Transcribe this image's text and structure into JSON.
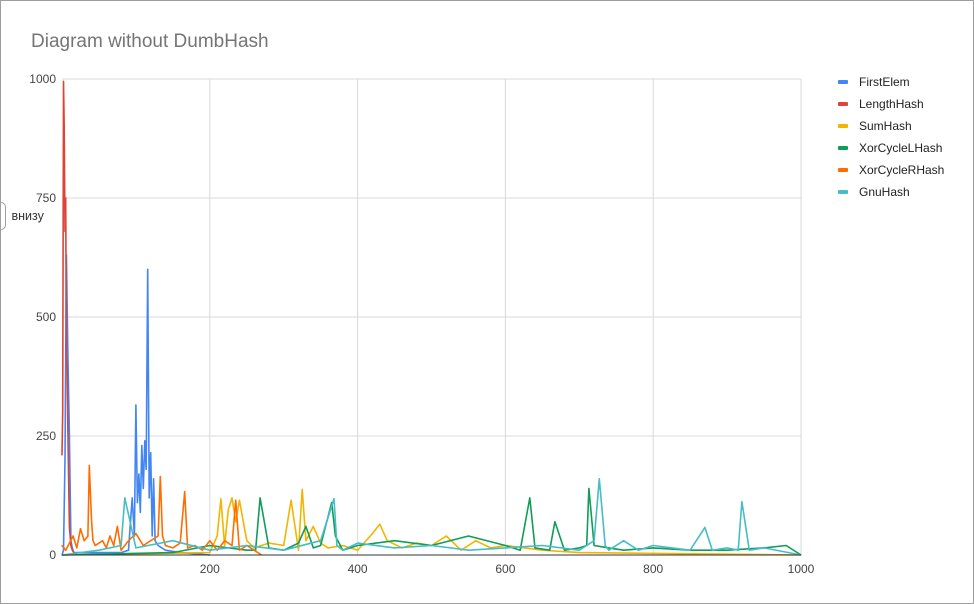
{
  "chart_data": {
    "type": "line",
    "title": "Diagram without DumbHash",
    "xlabel": "",
    "ylabel": "",
    "xlim": [
      0,
      1000
    ],
    "ylim": [
      0,
      1000
    ],
    "x_ticks": [
      "200",
      "400",
      "600",
      "800",
      "1000"
    ],
    "y_ticks": [
      "0",
      "250",
      "500",
      "750",
      "1000"
    ],
    "grid": true,
    "legend_position": "right",
    "series": [
      {
        "name": "FirstElem",
        "color": "#4285f4",
        "x": [
          0,
          2,
          4,
          6,
          8,
          10,
          12,
          14,
          16,
          20,
          30,
          40,
          50,
          60,
          70,
          80,
          90,
          95,
          98,
          100,
          102,
          104,
          106,
          108,
          110,
          112,
          114,
          115,
          116,
          118,
          120,
          122,
          124,
          126,
          130,
          140,
          160,
          200
        ],
        "values": [
          0,
          10,
          200,
          630,
          420,
          250,
          30,
          15,
          5,
          5,
          5,
          5,
          5,
          5,
          5,
          5,
          10,
          120,
          40,
          315,
          110,
          170,
          90,
          230,
          140,
          240,
          180,
          410,
          600,
          120,
          215,
          40,
          160,
          30,
          20,
          10,
          5,
          0
        ]
      },
      {
        "name": "LengthHash",
        "color": "#db4437",
        "x": [
          0,
          1,
          2,
          3,
          4,
          5,
          6,
          7,
          8,
          9,
          10,
          12,
          14,
          16,
          20
        ],
        "values": [
          210,
          300,
          995,
          900,
          680,
          750,
          420,
          380,
          260,
          150,
          60,
          20,
          10,
          5,
          0
        ]
      },
      {
        "name": "SumHash",
        "color": "#f4b400",
        "x": [
          0,
          200,
          210,
          215,
          220,
          225,
          230,
          235,
          240,
          250,
          260,
          280,
          300,
          310,
          320,
          325,
          330,
          340,
          350,
          360,
          380,
          400,
          420,
          430,
          440,
          460,
          480,
          500,
          520,
          540,
          560,
          580,
          600,
          650,
          700,
          1000
        ],
        "values": [
          0,
          5,
          40,
          118,
          20,
          95,
          120,
          70,
          115,
          30,
          15,
          25,
          20,
          115,
          10,
          138,
          30,
          60,
          25,
          15,
          20,
          10,
          45,
          65,
          30,
          15,
          25,
          20,
          40,
          10,
          30,
          15,
          20,
          10,
          5,
          0
        ]
      },
      {
        "name": "XorCycleLHash",
        "color": "#0f9d58",
        "x": [
          0,
          150,
          200,
          250,
          262,
          268,
          280,
          300,
          320,
          330,
          340,
          350,
          365,
          370,
          380,
          400,
          450,
          500,
          550,
          600,
          620,
          633,
          640,
          660,
          667,
          680,
          700,
          710,
          713,
          720,
          740,
          760,
          800,
          850,
          900,
          950,
          980,
          1000
        ],
        "values": [
          0,
          5,
          20,
          10,
          10,
          120,
          15,
          10,
          25,
          60,
          15,
          20,
          110,
          40,
          10,
          20,
          30,
          20,
          40,
          20,
          10,
          120,
          15,
          10,
          70,
          10,
          15,
          20,
          140,
          20,
          15,
          10,
          15,
          10,
          10,
          15,
          20,
          0
        ]
      },
      {
        "name": "XorCycleRHash",
        "color": "#ff6d00",
        "x": [
          0,
          5,
          10,
          15,
          20,
          25,
          30,
          35,
          37,
          40,
          42,
          45,
          50,
          55,
          60,
          65,
          70,
          75,
          80,
          90,
          100,
          110,
          120,
          130,
          133,
          136,
          140,
          150,
          160,
          166,
          170,
          180,
          190,
          200,
          210,
          220,
          230,
          235,
          240,
          250,
          260,
          270
        ],
        "values": [
          20,
          10,
          25,
          40,
          15,
          55,
          30,
          40,
          188,
          70,
          30,
          20,
          25,
          30,
          15,
          40,
          20,
          60,
          10,
          30,
          45,
          20,
          30,
          40,
          165,
          40,
          20,
          15,
          25,
          133,
          15,
          20,
          10,
          30,
          10,
          30,
          20,
          115,
          10,
          20,
          10,
          0
        ]
      },
      {
        "name": "GnuHash",
        "color": "#46bdc6",
        "x": [
          0,
          50,
          80,
          85,
          100,
          150,
          200,
          250,
          300,
          350,
          368,
          372,
          380,
          400,
          450,
          500,
          550,
          600,
          650,
          700,
          720,
          727,
          735,
          740,
          760,
          780,
          800,
          850,
          870,
          880,
          900,
          915,
          920,
          930,
          950,
          1000
        ],
        "values": [
          0,
          10,
          20,
          120,
          15,
          30,
          10,
          20,
          10,
          30,
          118,
          20,
          10,
          25,
          15,
          20,
          10,
          15,
          20,
          10,
          30,
          160,
          20,
          10,
          30,
          10,
          20,
          10,
          58,
          10,
          15,
          10,
          112,
          10,
          15,
          0
        ]
      }
    ]
  },
  "side_note": "внизу"
}
